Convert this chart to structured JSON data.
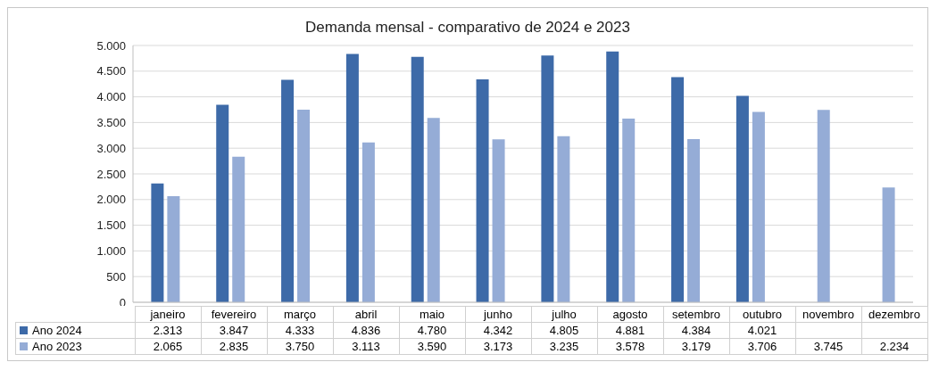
{
  "chart_data": {
    "type": "bar",
    "title": "Demanda mensal - comparativo de 2024 e 2023",
    "categories": [
      "janeiro",
      "fevereiro",
      "março",
      "abril",
      "maio",
      "junho",
      "julho",
      "agosto",
      "setembro",
      "outubro",
      "novembro",
      "dezembro"
    ],
    "series": [
      {
        "name": "Ano 2024",
        "color": "#3d6aa8",
        "values": [
          2313,
          3847,
          4333,
          4836,
          4780,
          4342,
          4805,
          4881,
          4384,
          4021,
          null,
          null
        ],
        "value_labels": [
          "2.313",
          "3.847",
          "4.333",
          "4.836",
          "4.780",
          "4.342",
          "4.805",
          "4.881",
          "4.384",
          "4.021",
          null,
          null
        ]
      },
      {
        "name": "Ano 2023",
        "color": "#95acd6",
        "values": [
          2065,
          2835,
          3750,
          3113,
          3590,
          3173,
          3235,
          3578,
          3179,
          3706,
          3745,
          2234
        ],
        "value_labels": [
          "2.065",
          "2.835",
          "3.750",
          "3.113",
          "3.590",
          "3.173",
          "3.235",
          "3.578",
          "3.179",
          "3.706",
          "3.745",
          "2.234"
        ]
      }
    ],
    "ylim": [
      0,
      5000
    ],
    "yticks": [
      0,
      {
        "value": 500,
        "label": "500"
      },
      {
        "value": 1000,
        "label": "1.000"
      },
      {
        "value": 1500,
        "label": "1.500"
      },
      {
        "value": 2000,
        "label": "2.000"
      },
      {
        "value": 2500,
        "label": "2.500"
      },
      {
        "value": 3000,
        "label": "3.000"
      },
      {
        "value": 3500,
        "label": "3.500"
      },
      {
        "value": 4000,
        "label": "4.000"
      },
      {
        "value": 4500,
        "label": "4.500"
      },
      {
        "value": 5000,
        "label": "5.000"
      }
    ],
    "grid": "y",
    "legend": "bottom"
  }
}
